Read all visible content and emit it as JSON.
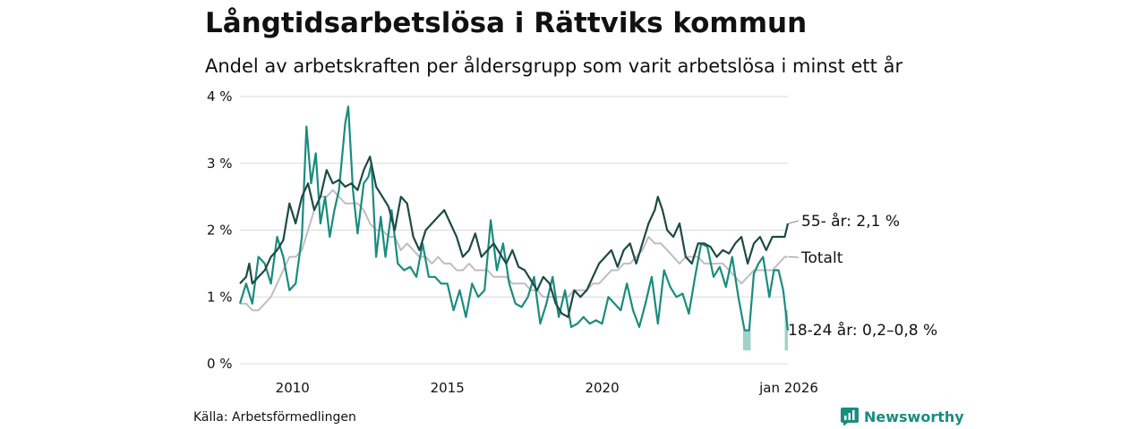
{
  "title": "Långtidsarbetslösa i Rättviks kommun",
  "subtitle": "Andel av arbetskraften per åldersgrupp som varit arbetslösa i minst ett år",
  "source": "Källa: Arbetsförmedlingen",
  "brand": "Newsworthy",
  "colors": {
    "older": "#1f4a44",
    "young": "#1a8c7f",
    "young_band": "#9fd2cb",
    "total": "#c0bcc7",
    "grid": "#d9d9d9",
    "brand": "#1a8c7f"
  },
  "chart_data": {
    "type": "line",
    "title": "Långtidsarbetslösa i Rättviks kommun",
    "xlabel": "",
    "ylabel": "",
    "xlim": [
      2008.3,
      2026.0
    ],
    "ylim": [
      0,
      4
    ],
    "y_ticks": [
      {
        "value": 0,
        "label": "0 %"
      },
      {
        "value": 1,
        "label": "1 %"
      },
      {
        "value": 2,
        "label": "2 %"
      },
      {
        "value": 3,
        "label": "3 %"
      },
      {
        "value": 4,
        "label": "4 %"
      }
    ],
    "x_ticks": [
      {
        "value": 2010,
        "label": "2010"
      },
      {
        "value": 2015,
        "label": "2015"
      },
      {
        "value": 2020,
        "label": "2020"
      },
      {
        "value": 2026,
        "label": "jan 2026"
      }
    ],
    "series": [
      {
        "name": "Totalt",
        "key": "total",
        "end_label": "Totalt",
        "points": [
          [
            2008.3,
            0.9
          ],
          [
            2008.5,
            0.9
          ],
          [
            2008.7,
            0.8
          ],
          [
            2008.9,
            0.8
          ],
          [
            2009.1,
            0.9
          ],
          [
            2009.3,
            1.0
          ],
          [
            2009.5,
            1.2
          ],
          [
            2009.7,
            1.4
          ],
          [
            2009.9,
            1.6
          ],
          [
            2010.1,
            1.6
          ],
          [
            2010.3,
            1.7
          ],
          [
            2010.5,
            2.0
          ],
          [
            2010.7,
            2.3
          ],
          [
            2010.9,
            2.5
          ],
          [
            2011.1,
            2.5
          ],
          [
            2011.3,
            2.6
          ],
          [
            2011.5,
            2.5
          ],
          [
            2011.7,
            2.4
          ],
          [
            2011.9,
            2.4
          ],
          [
            2012.1,
            2.4
          ],
          [
            2012.3,
            2.3
          ],
          [
            2012.5,
            2.1
          ],
          [
            2012.7,
            2.0
          ],
          [
            2012.9,
            2.0
          ],
          [
            2013.1,
            1.9
          ],
          [
            2013.3,
            1.9
          ],
          [
            2013.5,
            1.7
          ],
          [
            2013.7,
            1.8
          ],
          [
            2013.9,
            1.7
          ],
          [
            2014.1,
            1.6
          ],
          [
            2014.3,
            1.6
          ],
          [
            2014.5,
            1.5
          ],
          [
            2014.7,
            1.6
          ],
          [
            2014.9,
            1.5
          ],
          [
            2015.1,
            1.5
          ],
          [
            2015.3,
            1.4
          ],
          [
            2015.5,
            1.4
          ],
          [
            2015.7,
            1.5
          ],
          [
            2015.9,
            1.4
          ],
          [
            2016.1,
            1.4
          ],
          [
            2016.3,
            1.4
          ],
          [
            2016.5,
            1.3
          ],
          [
            2016.7,
            1.3
          ],
          [
            2016.9,
            1.3
          ],
          [
            2017.1,
            1.2
          ],
          [
            2017.3,
            1.2
          ],
          [
            2017.5,
            1.2
          ],
          [
            2017.7,
            1.1
          ],
          [
            2017.9,
            1.1
          ],
          [
            2018.1,
            1.0
          ],
          [
            2018.3,
            1.0
          ],
          [
            2018.5,
            1.0
          ],
          [
            2018.7,
            1.0
          ],
          [
            2018.9,
            1.0
          ],
          [
            2019.1,
            1.1
          ],
          [
            2019.3,
            1.1
          ],
          [
            2019.5,
            1.1
          ],
          [
            2019.7,
            1.2
          ],
          [
            2019.9,
            1.2
          ],
          [
            2020.1,
            1.3
          ],
          [
            2020.3,
            1.4
          ],
          [
            2020.5,
            1.4
          ],
          [
            2020.7,
            1.5
          ],
          [
            2020.9,
            1.5
          ],
          [
            2021.1,
            1.6
          ],
          [
            2021.3,
            1.7
          ],
          [
            2021.5,
            1.9
          ],
          [
            2021.7,
            1.8
          ],
          [
            2021.9,
            1.8
          ],
          [
            2022.1,
            1.7
          ],
          [
            2022.3,
            1.6
          ],
          [
            2022.5,
            1.5
          ],
          [
            2022.7,
            1.6
          ],
          [
            2022.9,
            1.6
          ],
          [
            2023.1,
            1.6
          ],
          [
            2023.3,
            1.5
          ],
          [
            2023.5,
            1.5
          ],
          [
            2023.7,
            1.5
          ],
          [
            2023.9,
            1.5
          ],
          [
            2024.1,
            1.4
          ],
          [
            2024.3,
            1.3
          ],
          [
            2024.5,
            1.2
          ],
          [
            2024.7,
            1.3
          ],
          [
            2024.9,
            1.4
          ],
          [
            2025.1,
            1.4
          ],
          [
            2025.3,
            1.4
          ],
          [
            2025.5,
            1.4
          ],
          [
            2025.7,
            1.5
          ],
          [
            2025.9,
            1.6
          ],
          [
            2026.0,
            1.6
          ]
        ]
      },
      {
        "name": "18-24 år",
        "key": "young",
        "end_label": "18-24 år: 0,2–0,8 %",
        "band_range": [
          0.2,
          0.8
        ],
        "points": [
          [
            2008.3,
            0.9
          ],
          [
            2008.5,
            1.2
          ],
          [
            2008.7,
            0.9
          ],
          [
            2008.9,
            1.6
          ],
          [
            2009.1,
            1.5
          ],
          [
            2009.3,
            1.2
          ],
          [
            2009.5,
            1.9
          ],
          [
            2009.7,
            1.6
          ],
          [
            2009.9,
            1.1
          ],
          [
            2010.1,
            1.2
          ],
          [
            2010.3,
            1.9
          ],
          [
            2010.45,
            3.55
          ],
          [
            2010.6,
            2.7
          ],
          [
            2010.75,
            3.15
          ],
          [
            2010.9,
            2.1
          ],
          [
            2011.05,
            2.5
          ],
          [
            2011.2,
            1.9
          ],
          [
            2011.35,
            2.3
          ],
          [
            2011.5,
            2.6
          ],
          [
            2011.7,
            3.6
          ],
          [
            2011.8,
            3.85
          ],
          [
            2011.95,
            2.6
          ],
          [
            2012.1,
            1.95
          ],
          [
            2012.3,
            2.7
          ],
          [
            2012.45,
            2.8
          ],
          [
            2012.55,
            3.0
          ],
          [
            2012.7,
            1.6
          ],
          [
            2012.85,
            2.2
          ],
          [
            2013.0,
            1.6
          ],
          [
            2013.2,
            2.3
          ],
          [
            2013.4,
            1.5
          ],
          [
            2013.6,
            1.4
          ],
          [
            2013.8,
            1.45
          ],
          [
            2014.0,
            1.3
          ],
          [
            2014.2,
            1.8
          ],
          [
            2014.4,
            1.3
          ],
          [
            2014.6,
            1.3
          ],
          [
            2014.8,
            1.2
          ],
          [
            2015.0,
            1.2
          ],
          [
            2015.2,
            0.8
          ],
          [
            2015.4,
            1.1
          ],
          [
            2015.6,
            0.7
          ],
          [
            2015.8,
            1.2
          ],
          [
            2016.0,
            1.0
          ],
          [
            2016.2,
            1.1
          ],
          [
            2016.4,
            2.15
          ],
          [
            2016.6,
            1.4
          ],
          [
            2016.8,
            1.8
          ],
          [
            2017.0,
            1.2
          ],
          [
            2017.2,
            0.9
          ],
          [
            2017.4,
            0.85
          ],
          [
            2017.6,
            1.0
          ],
          [
            2017.8,
            1.3
          ],
          [
            2018.0,
            0.6
          ],
          [
            2018.2,
            0.9
          ],
          [
            2018.4,
            1.3
          ],
          [
            2018.6,
            0.7
          ],
          [
            2018.8,
            1.1
          ],
          [
            2019.0,
            0.55
          ],
          [
            2019.2,
            0.6
          ],
          [
            2019.4,
            0.7
          ],
          [
            2019.6,
            0.6
          ],
          [
            2019.8,
            0.65
          ],
          [
            2020.0,
            0.6
          ],
          [
            2020.2,
            1.0
          ],
          [
            2020.4,
            0.9
          ],
          [
            2020.6,
            0.8
          ],
          [
            2020.8,
            1.2
          ],
          [
            2021.0,
            0.8
          ],
          [
            2021.2,
            0.55
          ],
          [
            2021.4,
            0.9
          ],
          [
            2021.6,
            1.3
          ],
          [
            2021.8,
            0.6
          ],
          [
            2022.0,
            1.4
          ],
          [
            2022.2,
            1.15
          ],
          [
            2022.4,
            1.0
          ],
          [
            2022.6,
            1.05
          ],
          [
            2022.8,
            0.75
          ],
          [
            2023.0,
            1.3
          ],
          [
            2023.2,
            1.8
          ],
          [
            2023.4,
            1.75
          ],
          [
            2023.6,
            1.3
          ],
          [
            2023.8,
            1.45
          ],
          [
            2024.0,
            1.15
          ],
          [
            2024.2,
            1.6
          ],
          [
            2024.4,
            1.0
          ],
          [
            2024.6,
            0.5
          ],
          [
            2024.75,
            0.5
          ],
          [
            2024.9,
            1.35
          ],
          [
            2025.05,
            1.5
          ],
          [
            2025.2,
            1.6
          ],
          [
            2025.4,
            1.0
          ],
          [
            2025.55,
            1.4
          ],
          [
            2025.7,
            1.4
          ],
          [
            2025.85,
            1.1
          ],
          [
            2026.0,
            0.5
          ]
        ]
      },
      {
        "name": "55- år",
        "key": "older",
        "end_label": "55- år: 2,1 %",
        "points": [
          [
            2008.3,
            1.2
          ],
          [
            2008.5,
            1.3
          ],
          [
            2008.6,
            1.5
          ],
          [
            2008.7,
            1.2
          ],
          [
            2008.9,
            1.3
          ],
          [
            2009.1,
            1.4
          ],
          [
            2009.3,
            1.6
          ],
          [
            2009.5,
            1.7
          ],
          [
            2009.7,
            1.85
          ],
          [
            2009.9,
            2.4
          ],
          [
            2010.1,
            2.1
          ],
          [
            2010.3,
            2.5
          ],
          [
            2010.5,
            2.7
          ],
          [
            2010.7,
            2.3
          ],
          [
            2010.9,
            2.5
          ],
          [
            2011.1,
            2.9
          ],
          [
            2011.3,
            2.7
          ],
          [
            2011.5,
            2.75
          ],
          [
            2011.7,
            2.65
          ],
          [
            2011.9,
            2.7
          ],
          [
            2012.1,
            2.6
          ],
          [
            2012.3,
            2.9
          ],
          [
            2012.5,
            3.1
          ],
          [
            2012.7,
            2.65
          ],
          [
            2012.9,
            2.5
          ],
          [
            2013.1,
            2.35
          ],
          [
            2013.3,
            2.0
          ],
          [
            2013.5,
            2.5
          ],
          [
            2013.7,
            2.4
          ],
          [
            2013.9,
            1.9
          ],
          [
            2014.1,
            1.7
          ],
          [
            2014.3,
            2.0
          ],
          [
            2014.5,
            2.1
          ],
          [
            2014.7,
            2.2
          ],
          [
            2014.9,
            2.3
          ],
          [
            2015.1,
            2.1
          ],
          [
            2015.3,
            1.9
          ],
          [
            2015.5,
            1.6
          ],
          [
            2015.7,
            1.7
          ],
          [
            2015.9,
            1.95
          ],
          [
            2016.1,
            1.6
          ],
          [
            2016.3,
            1.7
          ],
          [
            2016.5,
            1.8
          ],
          [
            2016.7,
            1.65
          ],
          [
            2016.9,
            1.5
          ],
          [
            2017.1,
            1.7
          ],
          [
            2017.3,
            1.45
          ],
          [
            2017.5,
            1.4
          ],
          [
            2017.7,
            1.25
          ],
          [
            2017.9,
            1.1
          ],
          [
            2018.1,
            1.3
          ],
          [
            2018.3,
            1.2
          ],
          [
            2018.5,
            0.9
          ],
          [
            2018.7,
            0.75
          ],
          [
            2018.9,
            0.7
          ],
          [
            2019.1,
            1.1
          ],
          [
            2019.3,
            1.0
          ],
          [
            2019.5,
            1.1
          ],
          [
            2019.7,
            1.3
          ],
          [
            2019.9,
            1.5
          ],
          [
            2020.1,
            1.6
          ],
          [
            2020.3,
            1.7
          ],
          [
            2020.5,
            1.45
          ],
          [
            2020.7,
            1.7
          ],
          [
            2020.9,
            1.8
          ],
          [
            2021.1,
            1.5
          ],
          [
            2021.3,
            1.8
          ],
          [
            2021.5,
            2.1
          ],
          [
            2021.7,
            2.3
          ],
          [
            2021.8,
            2.5
          ],
          [
            2021.95,
            2.3
          ],
          [
            2022.1,
            2.0
          ],
          [
            2022.3,
            1.9
          ],
          [
            2022.5,
            2.1
          ],
          [
            2022.7,
            1.6
          ],
          [
            2022.9,
            1.5
          ],
          [
            2023.1,
            1.8
          ],
          [
            2023.3,
            1.8
          ],
          [
            2023.5,
            1.75
          ],
          [
            2023.7,
            1.6
          ],
          [
            2023.9,
            1.7
          ],
          [
            2024.1,
            1.65
          ],
          [
            2024.3,
            1.8
          ],
          [
            2024.5,
            1.9
          ],
          [
            2024.7,
            1.5
          ],
          [
            2024.9,
            1.8
          ],
          [
            2025.1,
            1.9
          ],
          [
            2025.3,
            1.7
          ],
          [
            2025.5,
            1.9
          ],
          [
            2025.7,
            1.9
          ],
          [
            2025.9,
            1.9
          ],
          [
            2026.0,
            2.1
          ]
        ]
      }
    ]
  }
}
